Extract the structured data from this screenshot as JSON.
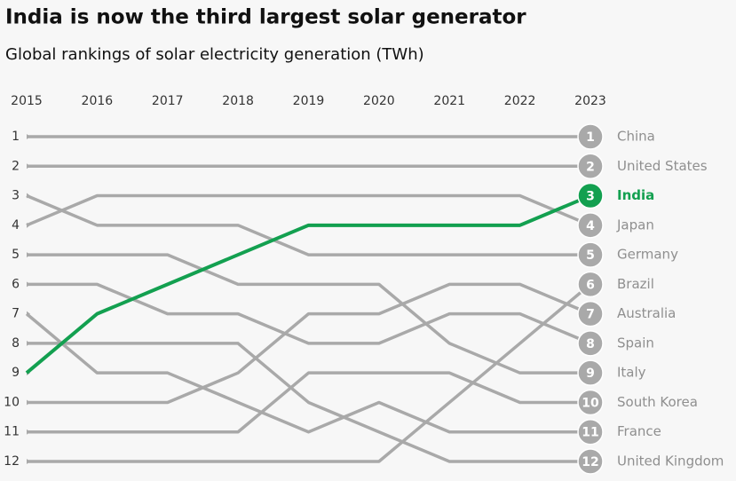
{
  "chart_data": {
    "type": "bump",
    "title": "India is now the third largest solar generator",
    "subtitle": "Global rankings of solar electricity generation (TWh)",
    "categories": [
      "2015",
      "2016",
      "2017",
      "2018",
      "2019",
      "2020",
      "2021",
      "2022",
      "2023"
    ],
    "ylim": [
      1,
      12
    ],
    "yticks": [
      1,
      2,
      3,
      4,
      5,
      6,
      7,
      8,
      9,
      10,
      11,
      12
    ],
    "inverted": true,
    "series": [
      {
        "name": "China",
        "color": "#a9a9a9",
        "values": [
          1,
          1,
          1,
          1,
          1,
          1,
          1,
          1,
          1
        ]
      },
      {
        "name": "United States",
        "color": "#a9a9a9",
        "values": [
          2,
          2,
          2,
          2,
          2,
          2,
          2,
          2,
          2
        ]
      },
      {
        "name": "India",
        "color": "#13a050",
        "values": [
          9,
          7,
          6,
          5,
          4,
          4,
          4,
          4,
          3
        ]
      },
      {
        "name": "Japan",
        "color": "#a9a9a9",
        "values": [
          4,
          3,
          3,
          3,
          3,
          3,
          3,
          3,
          4
        ]
      },
      {
        "name": "Germany",
        "color": "#a9a9a9",
        "values": [
          3,
          4,
          4,
          4,
          5,
          5,
          5,
          5,
          5
        ]
      },
      {
        "name": "Brazil",
        "color": "#a9a9a9",
        "values": [
          12,
          12,
          12,
          12,
          12,
          12,
          10,
          8,
          6
        ]
      },
      {
        "name": "Australia",
        "color": "#a9a9a9",
        "values": [
          10,
          10,
          10,
          9,
          7,
          7,
          6,
          6,
          7
        ]
      },
      {
        "name": "Spain",
        "color": "#a9a9a9",
        "values": [
          6,
          6,
          7,
          7,
          8,
          8,
          7,
          7,
          8
        ]
      },
      {
        "name": "Italy",
        "color": "#a9a9a9",
        "values": [
          5,
          5,
          5,
          6,
          6,
          6,
          8,
          9,
          9
        ]
      },
      {
        "name": "South Korea",
        "color": "#a9a9a9",
        "values": [
          11,
          11,
          11,
          11,
          9,
          9,
          9,
          10,
          10
        ]
      },
      {
        "name": "France",
        "color": "#a9a9a9",
        "values": [
          7,
          9,
          9,
          10,
          11,
          10,
          11,
          11,
          11
        ]
      },
      {
        "name": "United Kingdom",
        "color": "#a9a9a9",
        "values": [
          8,
          8,
          8,
          8,
          10,
          11,
          12,
          12,
          12
        ]
      }
    ],
    "highlight": "India"
  }
}
